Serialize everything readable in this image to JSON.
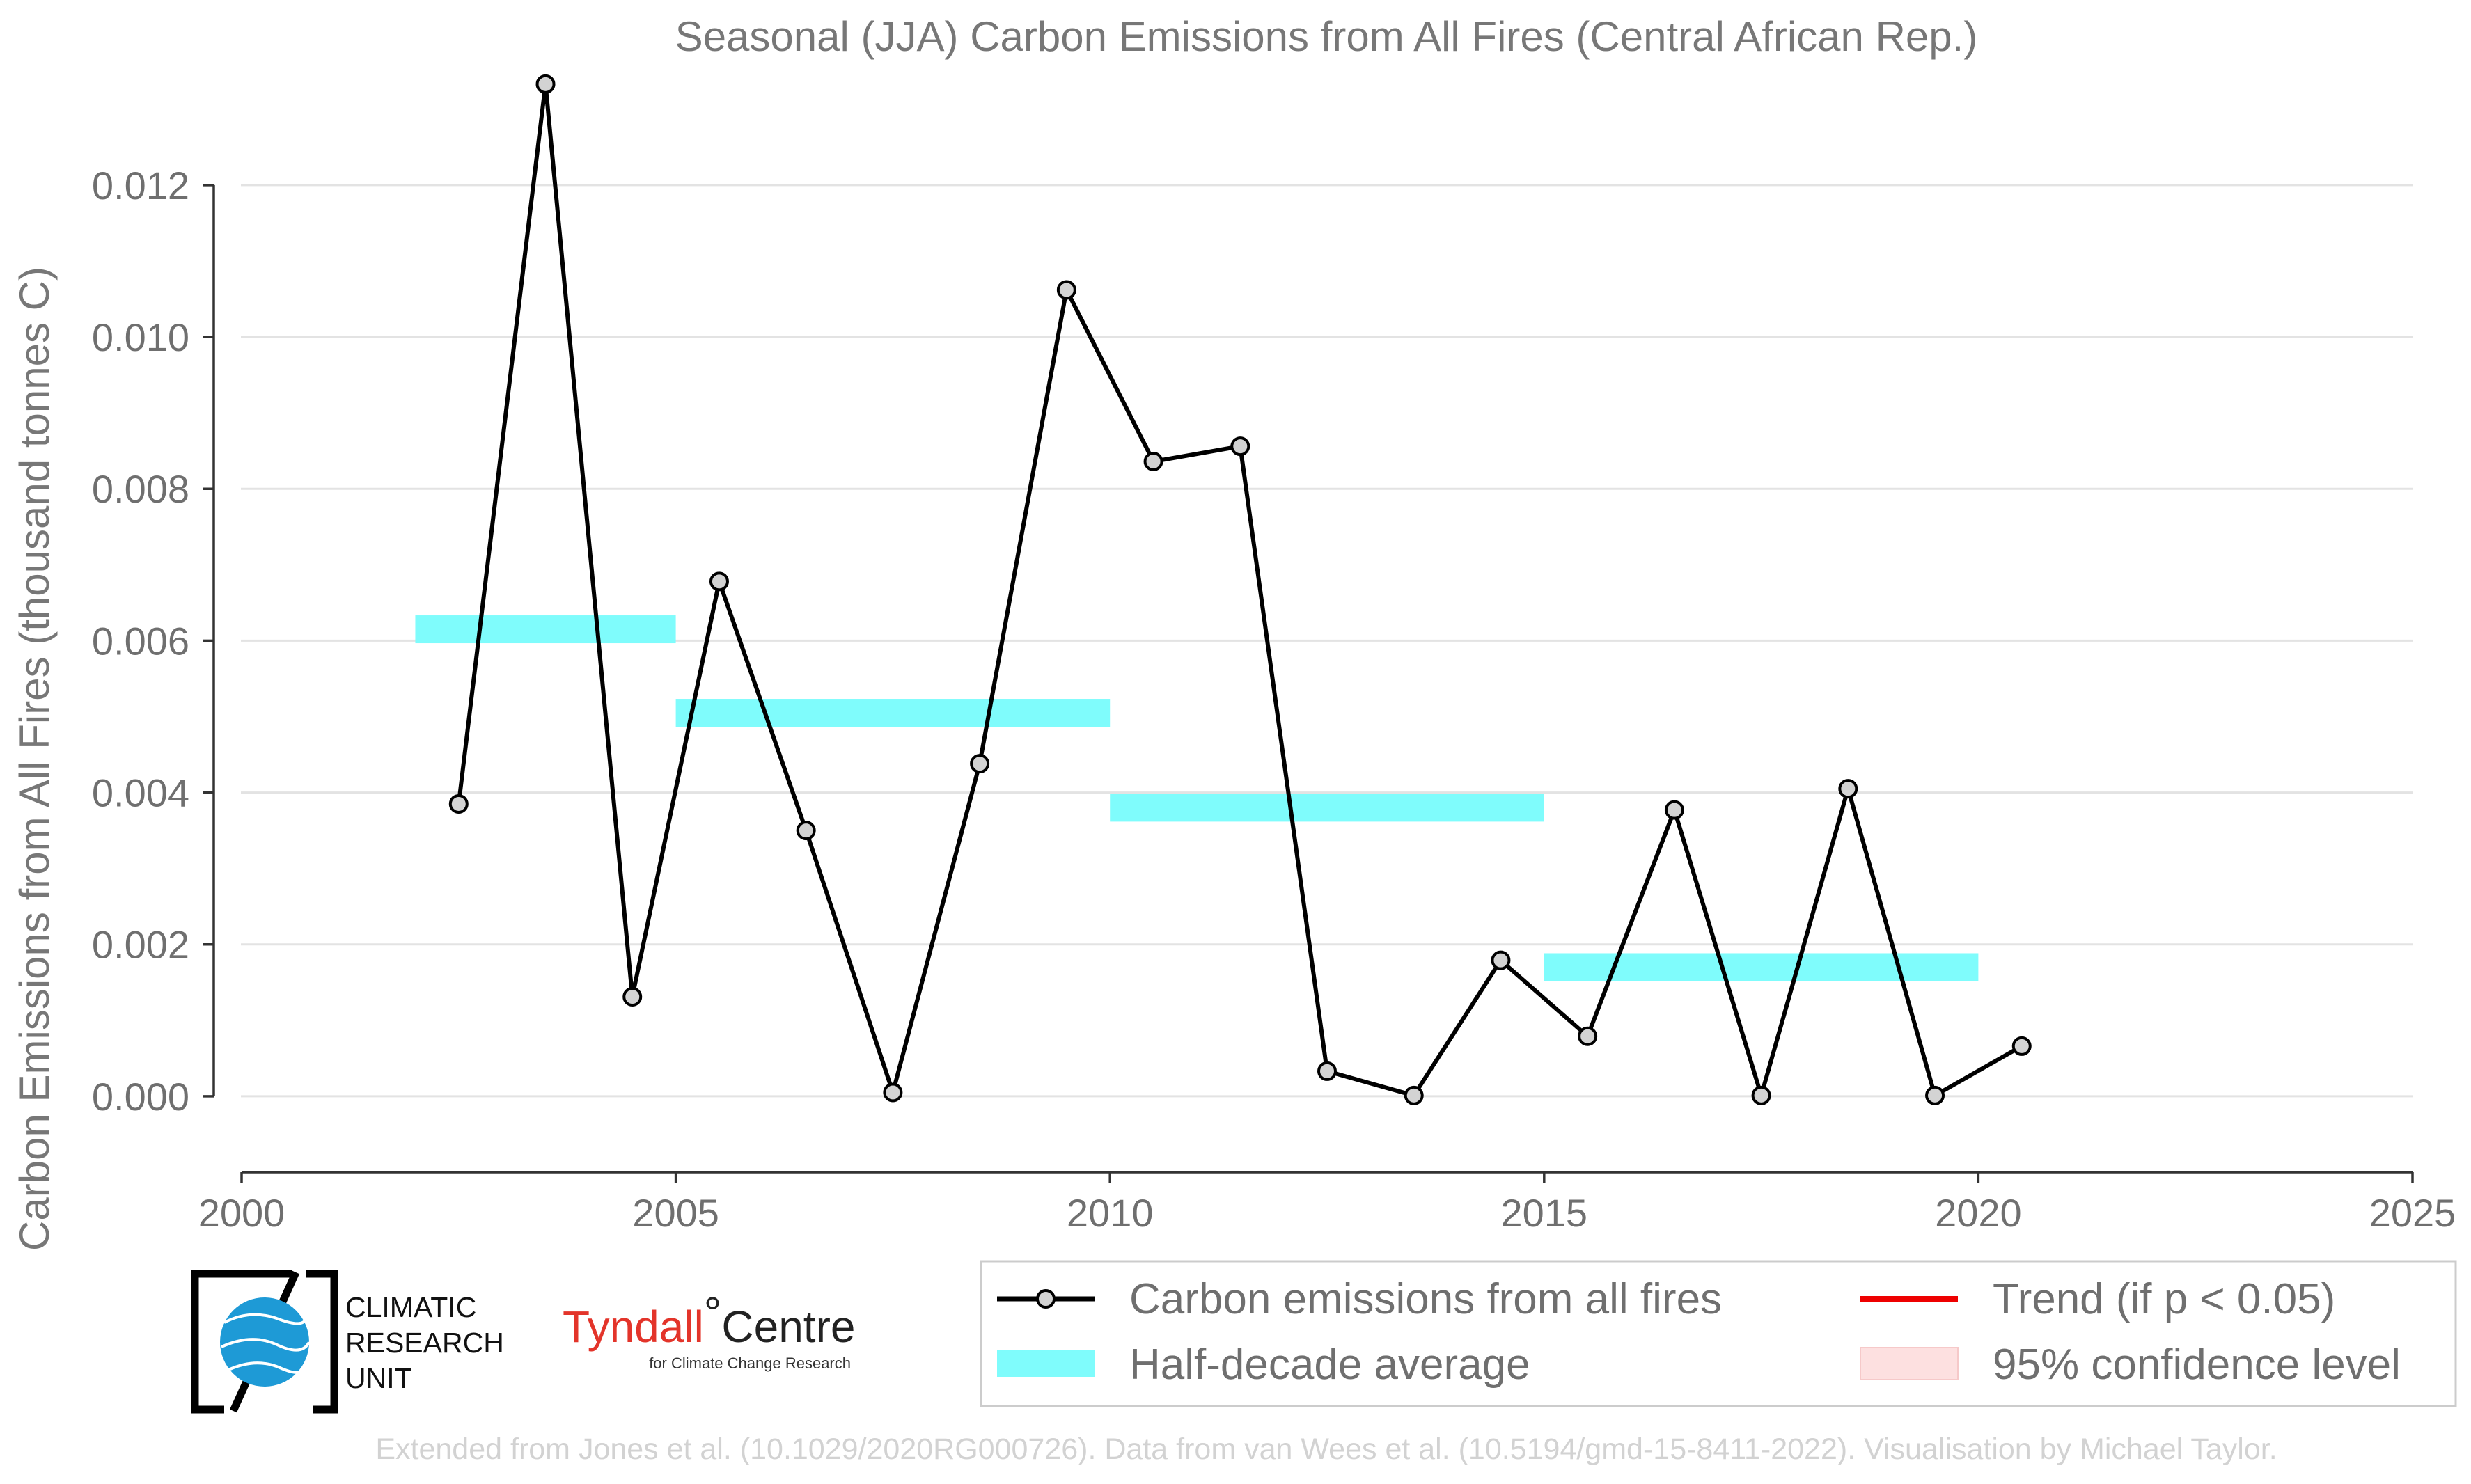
{
  "chart_data": {
    "type": "line",
    "title": "Seasonal (JJA) Carbon Emissions from All Fires (Central African Rep.)",
    "xlabel": "",
    "ylabel": "Carbon Emissions from All Fires (thousand tonnes C)",
    "xlim": [
      2000,
      2025
    ],
    "ylim": [
      -0.001,
      0.0132
    ],
    "x_ticks": [
      "2000",
      "2005",
      "2010",
      "2015",
      "2020",
      "2025"
    ],
    "y_ticks": [
      "0.000",
      "0.002",
      "0.004",
      "0.006",
      "0.008",
      "0.010",
      "0.012"
    ],
    "grid": "horizontal",
    "series": [
      {
        "name": "Carbon emissions from all fires",
        "color": "#000000",
        "marker_fill": "#d3d3d3",
        "x": [
          2002.5,
          2003.5,
          2004.5,
          2005.5,
          2006.5,
          2007.5,
          2008.5,
          2009.5,
          2010.5,
          2011.5,
          2012.5,
          2013.5,
          2014.5,
          2015.5,
          2016.5,
          2017.5,
          2018.5,
          2019.5,
          2020.5
        ],
        "y": [
          0.00385,
          0.01333,
          0.00131,
          0.00678,
          0.0035,
          5e-05,
          0.00438,
          0.01062,
          0.00836,
          0.00856,
          0.00033,
          1e-05,
          0.00179,
          0.00079,
          0.00377,
          1e-05,
          0.00405,
          1e-05,
          0.00066
        ]
      },
      {
        "name": "Half-decade average",
        "color": "#7ffcfc",
        "segments": [
          {
            "x0": 2002,
            "x1": 2005,
            "y": 0.00615
          },
          {
            "x0": 2005,
            "x1": 2010,
            "y": 0.00505
          },
          {
            "x0": 2010,
            "x1": 2015,
            "y": 0.0038
          },
          {
            "x0": 2015,
            "x1": 2020,
            "y": 0.0017
          }
        ]
      }
    ],
    "legend": {
      "placement": "bottom-right",
      "entries": [
        {
          "label": "Carbon emissions from all fires",
          "kind": "line-marker",
          "color": "#000000"
        },
        {
          "label": "Trend (if p < 0.05)",
          "kind": "line",
          "color": "#ee0000"
        },
        {
          "label": "Half-decade average",
          "kind": "patch",
          "color": "#7ffcfc"
        },
        {
          "label": "95% confidence level",
          "kind": "patch",
          "color": "#fde0e0"
        }
      ]
    }
  },
  "logos": {
    "cru": [
      "CLIMATIC",
      "RESEARCH",
      "UNIT"
    ],
    "tyndall_red": "Tyndall",
    "tyndall_degree": "°",
    "tyndall_black": "Centre",
    "tyndall_sub": "for Climate Change Research"
  },
  "source_text": "Extended from Jones et al. (10.1029/2020RG000726). Data from van Wees et al. (10.5194/gmd-15-8411-2022). Visualisation by Michael Taylor."
}
